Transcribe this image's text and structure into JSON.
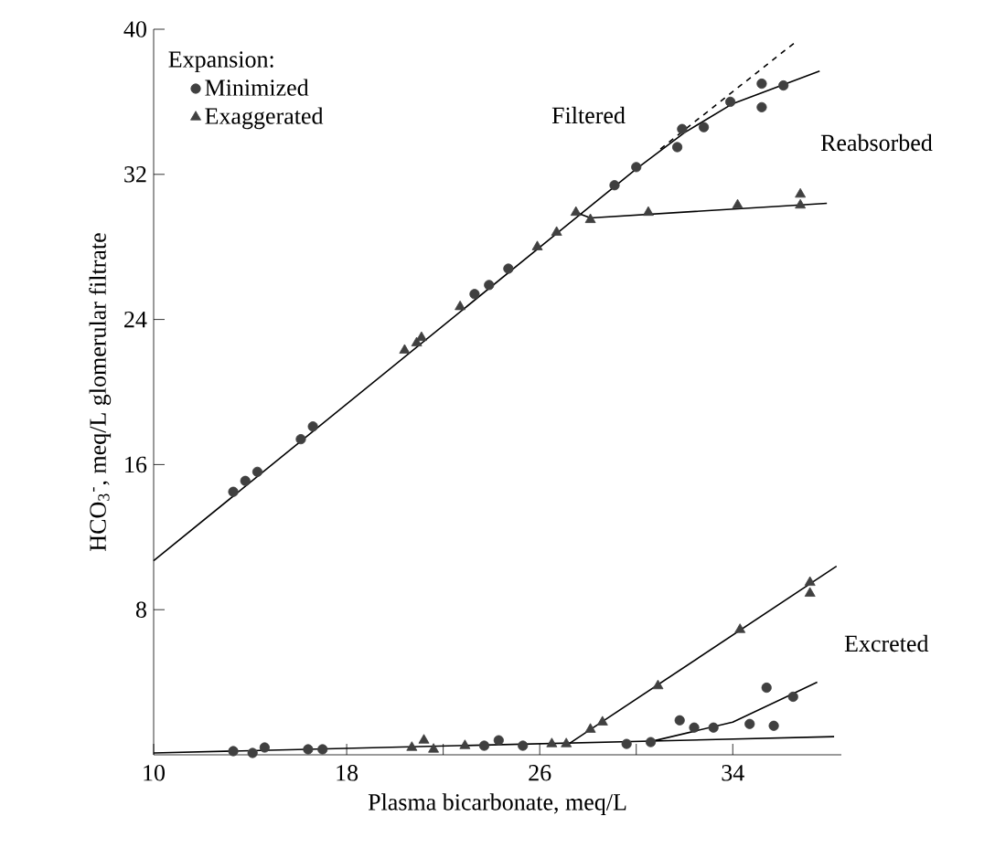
{
  "chart_data": {
    "type": "scatter",
    "xlabel": "Plasma bicarbonate, meq/L",
    "ylabel": "HCO$_{3}$$^{-}$, meq/L glomerular filtrate",
    "legend_title": "Expansion:",
    "legend": "top left",
    "xlim": [
      10,
      38.5
    ],
    "ylim": [
      0,
      40
    ],
    "xticks": [
      10,
      18,
      {
        "value": 22,
        "label": null
      },
      26,
      {
        "value": 30,
        "label": null
      },
      34
    ],
    "yticks": [
      8,
      16,
      24,
      32,
      40
    ],
    "grid": false,
    "series": [
      {
        "name": "Minimized",
        "marker": "circle",
        "color": "#404040",
        "x": [
          13.3,
          13.8,
          14.3,
          16.1,
          16.6,
          23.3,
          23.9,
          24.7,
          29.1,
          30.0,
          31.7,
          31.9,
          32.8,
          33.9,
          35.2,
          35.2,
          36.1,
          13.3,
          14.1,
          14.6,
          16.4,
          17.0,
          23.7,
          24.3,
          25.3,
          29.6,
          30.6,
          31.8,
          32.4,
          33.2,
          34.7,
          35.4,
          35.7,
          36.5
        ],
        "values": [
          14.5,
          15.1,
          15.6,
          17.4,
          18.1,
          25.4,
          25.9,
          26.8,
          31.4,
          32.4,
          33.5,
          34.5,
          34.6,
          36.0,
          37.0,
          35.7,
          36.9,
          0.2,
          0.1,
          0.4,
          0.3,
          0.3,
          0.5,
          0.8,
          0.5,
          0.6,
          0.7,
          1.9,
          1.5,
          1.5,
          1.7,
          3.7,
          1.6,
          3.2
        ]
      },
      {
        "name": "Exaggerated",
        "marker": "triangle",
        "color": "#404040",
        "x": [
          20.4,
          20.9,
          21.1,
          22.7,
          25.9,
          26.7,
          27.5,
          28.1,
          30.5,
          34.2,
          36.8,
          36.8,
          20.7,
          21.2,
          21.6,
          22.9,
          26.5,
          27.1,
          28.1,
          28.6,
          30.9,
          34.3,
          37.2,
          37.2
        ],
        "values": [
          22.3,
          22.7,
          23.0,
          24.7,
          28.0,
          28.8,
          29.9,
          29.5,
          29.9,
          30.3,
          30.9,
          30.3,
          0.4,
          0.8,
          0.3,
          0.5,
          0.6,
          0.6,
          1.4,
          1.8,
          3.8,
          6.9,
          9.5,
          8.9
        ]
      },
      {
        "type": "line",
        "line_style": "solid",
        "color": "#000000",
        "x": [
          10,
          30,
          32,
          34,
          37.6
        ],
        "values": [
          10.7,
          32.3,
          34.3,
          35.9,
          37.7
        ]
      },
      {
        "type": "line",
        "line_style": "dashed",
        "color": "#000000",
        "x": [
          31,
          36.7
        ],
        "values": [
          33.4,
          39.4
        ]
      },
      {
        "type": "line",
        "line_style": "solid",
        "color": "#000000",
        "x": [
          27.5,
          28.1,
          37.9
        ],
        "values": [
          29.9,
          29.6,
          30.4
        ]
      },
      {
        "type": "line",
        "line_style": "solid",
        "color": "#000000",
        "x": [
          10,
          38.2
        ],
        "values": [
          0.1,
          1.0
        ]
      },
      {
        "type": "line",
        "line_style": "solid",
        "color": "#000000",
        "x": [
          27.2,
          38.3
        ],
        "values": [
          0.6,
          10.4
        ]
      },
      {
        "type": "line",
        "line_style": "solid",
        "color": "#000000",
        "x": [
          30.5,
          34,
          37.5
        ],
        "values": [
          0.7,
          1.8,
          4.0
        ]
      }
    ],
    "annotations": [
      "Filtered",
      "Reabsorbed",
      "Excreted"
    ]
  }
}
